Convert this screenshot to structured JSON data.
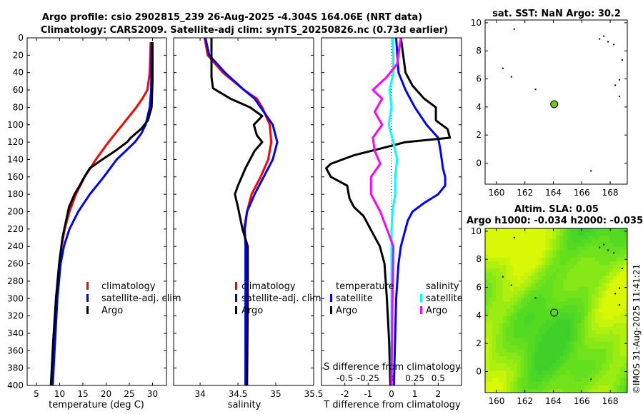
{
  "titles": {
    "line1": "Argo profile: csio 2902815_239 26-Aug-2025 -4.304S 164.06E (NRT data)",
    "line2": "Climatology: CARS2009. Satellite-adj clim: synTS_20250826.nc (0.73d earlier)"
  },
  "copyright": "©IMOS 31-Aug-2025 11:41:21",
  "colors": {
    "climatology": "#ff0000",
    "satellite": "#0000ff",
    "argo": "#000000",
    "sat_s": "#00ffff",
    "argo_s": "#ff00ff",
    "map_bg": "#5ddc1e",
    "float": "#7cc40c"
  },
  "chart_data": [
    {
      "id": "temperature",
      "type": "line",
      "xlabel": "temperature (deg C)",
      "ylabel": "",
      "xlim": [
        3,
        33
      ],
      "ylim": [
        400,
        0
      ],
      "xticks": [
        5,
        10,
        15,
        20,
        25,
        30
      ],
      "yticks": [
        0,
        20,
        40,
        60,
        80,
        100,
        120,
        140,
        160,
        180,
        200,
        220,
        240,
        260,
        280,
        300,
        320,
        340,
        360,
        380,
        400
      ],
      "legend": [
        "climatology",
        "satellite-adj. clim",
        "Argo"
      ],
      "series": [
        {
          "name": "climatology",
          "color": "#ff0000",
          "depth": [
            5,
            40,
            60,
            70,
            80,
            100,
            120,
            140,
            160,
            180,
            200,
            220,
            240,
            260,
            300,
            350,
            400
          ],
          "values": [
            29.6,
            29.4,
            28.9,
            27.8,
            26.5,
            23.5,
            20.5,
            17.8,
            15.4,
            13.5,
            12.1,
            11.1,
            10.4,
            9.9,
            9.3,
            8.8,
            8.4
          ]
        },
        {
          "name": "satellite-adj. clim",
          "color": "#0000ff",
          "depth": [
            5,
            60,
            80,
            100,
            110,
            120,
            140,
            160,
            180,
            200,
            220,
            240,
            260,
            300,
            350,
            400
          ],
          "values": [
            29.8,
            29.7,
            29.4,
            28.5,
            27.6,
            26.2,
            22.3,
            19.5,
            16.5,
            14.0,
            12.1,
            10.9,
            10.2,
            9.5,
            9.0,
            8.5
          ]
        },
        {
          "name": "Argo",
          "color": "#000000",
          "depth": [
            5,
            50,
            80,
            95,
            105,
            115,
            120,
            130,
            140,
            150,
            160,
            170,
            180,
            195,
            210,
            230,
            260,
            300,
            350,
            400
          ],
          "values": [
            30.0,
            30.0,
            29.8,
            29.0,
            27.5,
            25.3,
            24.5,
            22.0,
            19.2,
            16.5,
            15.3,
            14.3,
            13.2,
            12.0,
            11.4,
            10.6,
            9.9,
            9.2,
            8.6,
            8.1
          ]
        }
      ]
    },
    {
      "id": "salinity",
      "type": "line",
      "xlabel": "salinity",
      "ylabel": "",
      "xlim": [
        33.65,
        35.5
      ],
      "ylim": [
        400,
        0
      ],
      "xticks": [
        34,
        34.5,
        35,
        35.5
      ],
      "legend": [
        "climatology",
        "satellite-adj. clim",
        "Argo"
      ],
      "series": [
        {
          "name": "climatology",
          "color": "#ff0000",
          "depth": [
            0,
            20,
            40,
            60,
            70,
            80,
            100,
            120,
            140,
            160,
            180,
            200,
            220,
            240,
            300,
            400
          ],
          "values": [
            34.06,
            34.1,
            34.3,
            34.58,
            34.75,
            34.82,
            34.92,
            34.94,
            34.9,
            34.8,
            34.68,
            34.62,
            34.58,
            34.61,
            34.61,
            34.6
          ]
        },
        {
          "name": "satellite-adj. clim",
          "color": "#0000ff",
          "depth": [
            0,
            20,
            40,
            60,
            70,
            80,
            100,
            120,
            140,
            160,
            180,
            200,
            220,
            240,
            300,
            400
          ],
          "values": [
            34.07,
            34.12,
            34.33,
            34.58,
            34.72,
            34.8,
            34.96,
            35.02,
            34.96,
            34.84,
            34.72,
            34.62,
            34.59,
            34.6,
            34.6,
            34.6
          ]
        },
        {
          "name": "Argo",
          "color": "#000000",
          "depth": [
            0,
            45,
            58,
            70,
            80,
            90,
            100,
            112,
            120,
            130,
            150,
            170,
            180,
            195,
            220,
            240,
            300,
            400
          ],
          "values": [
            34.15,
            34.15,
            34.17,
            34.4,
            34.66,
            34.82,
            34.71,
            34.75,
            34.82,
            34.72,
            34.6,
            34.5,
            34.46,
            34.5,
            34.56,
            34.63,
            34.63,
            34.62
          ]
        }
      ]
    },
    {
      "id": "differences",
      "type": "line",
      "xlabel": "T difference from climatology",
      "x2label": "S difference from climatology",
      "xlim": [
        -3,
        3
      ],
      "x2lim": [
        -0.75,
        0.75
      ],
      "ylim": [
        400,
        0
      ],
      "xticks": [
        -2,
        -1,
        0,
        1,
        2
      ],
      "x2ticks": [
        -0.5,
        -0.25,
        0,
        0.25,
        0.5
      ],
      "x2ticklabels": [
        "-0.5",
        "-0.25",
        "0",
        "0.25",
        "0.5"
      ],
      "legend_headers": [
        "temperature",
        "salinity"
      ],
      "legend_t": [
        "satellite",
        "Argo"
      ],
      "legend_s": [
        "satellite",
        "Argo"
      ],
      "series": [
        {
          "name": "temperature satellite",
          "color": "#0000ff",
          "axis": "T",
          "depth": [
            0,
            40,
            60,
            80,
            100,
            115,
            130,
            150,
            160,
            170,
            180,
            190,
            200,
            210,
            220,
            240,
            260,
            300,
            350,
            400
          ],
          "values": [
            0.2,
            0.3,
            0.6,
            1.0,
            1.5,
            2.0,
            2.1,
            2.2,
            2.3,
            2.3,
            2.0,
            1.4,
            0.9,
            0.7,
            0.6,
            0.4,
            0.3,
            0.2,
            0.15,
            0.1
          ]
        },
        {
          "name": "temperature Argo",
          "color": "#000000",
          "axis": "T",
          "depth": [
            0,
            40,
            55,
            70,
            80,
            95,
            105,
            115,
            120,
            127,
            135,
            145,
            150,
            160,
            170,
            185,
            195,
            205,
            220,
            240,
            260,
            300,
            350,
            400
          ],
          "values": [
            0.4,
            0.6,
            0.9,
            1.4,
            1.9,
            1.9,
            2.4,
            2.5,
            0.6,
            -0.4,
            -1.6,
            -2.6,
            -2.8,
            -2.6,
            -1.9,
            -1.8,
            -1.6,
            -1.2,
            -0.9,
            -0.5,
            -0.3,
            -0.2,
            -0.1,
            -0.05
          ]
        },
        {
          "name": "salinity satellite",
          "color": "#00ffff",
          "axis": "S",
          "depth": [
            0,
            20,
            40,
            60,
            80,
            100,
            120,
            140,
            160,
            180,
            200,
            220,
            260,
            300,
            400
          ],
          "values": [
            0.01,
            0.02,
            0.02,
            -0.02,
            0.0,
            -0.03,
            0.02,
            0.06,
            0.04,
            0.04,
            0.01,
            0.0,
            0.0,
            0.0,
            0.0
          ]
        },
        {
          "name": "salinity Argo",
          "color": "#ff00ff",
          "axis": "S",
          "depth": [
            0,
            30,
            45,
            60,
            70,
            85,
            100,
            115,
            130,
            145,
            160,
            180,
            200,
            220,
            240,
            300,
            400
          ],
          "values": [
            0.1,
            0.06,
            -0.05,
            -0.2,
            -0.1,
            -0.18,
            -0.1,
            -0.2,
            -0.18,
            -0.12,
            -0.22,
            -0.22,
            -0.12,
            -0.05,
            0.02,
            0.01,
            0.0
          ]
        }
      ]
    },
    {
      "id": "sst_map",
      "type": "scatter",
      "title": "sat. SST: NaN Argo: 30.2",
      "xlim": [
        159.2,
        169.2
      ],
      "ylim": [
        -1.5,
        10.2
      ],
      "xticks": [
        160,
        162,
        164,
        166,
        168
      ],
      "yticks": [
        0,
        2,
        4,
        6,
        8,
        10
      ],
      "float_position": [
        164.06,
        4.2
      ],
      "land_points": [
        [
          161.2,
          9.6
        ],
        [
          162.7,
          5.3
        ],
        [
          167.2,
          8.9
        ],
        [
          167.5,
          9.1
        ],
        [
          167.8,
          8.7
        ],
        [
          168.2,
          8.5
        ],
        [
          168.8,
          7.4
        ],
        [
          168.6,
          6.0
        ],
        [
          168.3,
          5.6
        ],
        [
          168.6,
          4.8
        ],
        [
          160.4,
          6.8
        ],
        [
          161.0,
          6.2
        ],
        [
          166.6,
          -0.5
        ]
      ]
    },
    {
      "id": "sla_map",
      "type": "heatmap",
      "title1": "Altim. SLA: 0.05",
      "title2": "Argo h1000: -0.034 h2000: -0.035",
      "xlim": [
        159.2,
        169.2
      ],
      "ylim": [
        -1.5,
        10.2
      ],
      "xticks": [
        160,
        162,
        164,
        166,
        168
      ],
      "yticks": [
        0,
        2,
        4,
        6,
        8,
        10
      ],
      "float_position": [
        164.06,
        4.2
      ],
      "land_points": [
        [
          161.2,
          9.6
        ],
        [
          162.7,
          5.3
        ],
        [
          167.2,
          8.9
        ],
        [
          167.5,
          9.1
        ],
        [
          167.8,
          8.7
        ],
        [
          168.2,
          8.5
        ],
        [
          168.8,
          7.4
        ],
        [
          168.6,
          6.0
        ],
        [
          168.3,
          5.6
        ],
        [
          168.6,
          4.8
        ],
        [
          160.4,
          6.8
        ],
        [
          161.0,
          6.2
        ],
        [
          166.6,
          -0.5
        ]
      ]
    }
  ]
}
